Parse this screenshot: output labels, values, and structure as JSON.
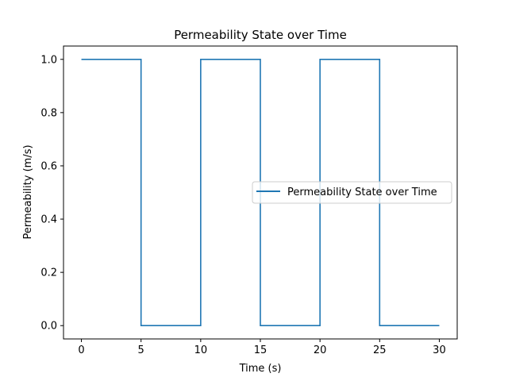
{
  "chart_data": {
    "type": "line",
    "title": "Permeability State over Time",
    "xlabel": "Time (s)",
    "ylabel": "Permeability (m/s)",
    "xlim": [
      -1.5,
      31.5
    ],
    "ylim": [
      -0.05,
      1.05
    ],
    "x_ticks": [
      0,
      5,
      10,
      15,
      20,
      25,
      30
    ],
    "x_tick_labels": [
      "0",
      "5",
      "10",
      "15",
      "20",
      "25",
      "30"
    ],
    "y_ticks": [
      0.0,
      0.2,
      0.4,
      0.6,
      0.8,
      1.0
    ],
    "y_tick_labels": [
      "0.0",
      "0.2",
      "0.4",
      "0.6",
      "0.8",
      "1.0"
    ],
    "grid": false,
    "legend_placement": "center-right",
    "series": [
      {
        "name": "Permeability State over Time",
        "color": "#1f77b4",
        "step": true,
        "x": [
          0,
          5,
          5,
          10,
          10,
          15,
          15,
          20,
          20,
          25,
          25,
          30
        ],
        "y": [
          1,
          1,
          0,
          0,
          1,
          1,
          0,
          0,
          1,
          1,
          0,
          0
        ]
      }
    ]
  }
}
